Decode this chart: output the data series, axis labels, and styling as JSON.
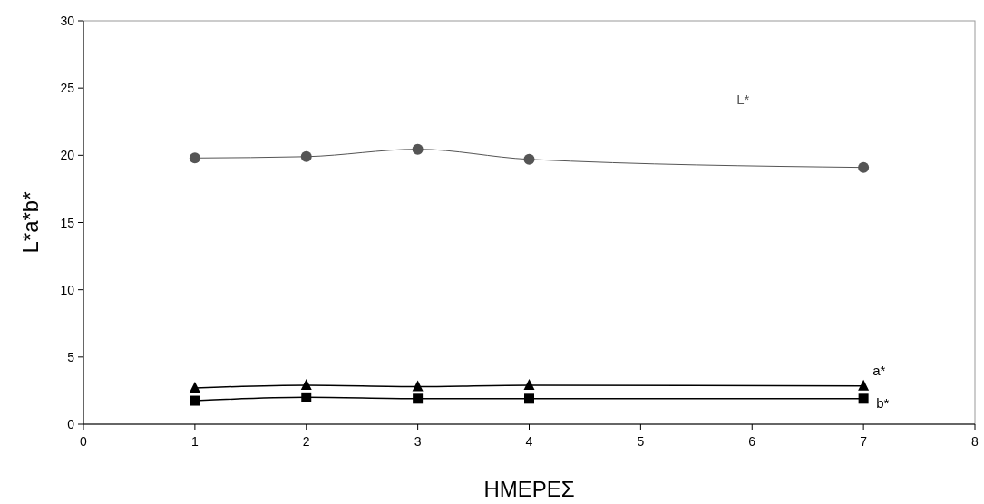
{
  "chart_data": {
    "type": "line",
    "xlabel": "ΗΜΕΡΕΣ",
    "ylabel": "L*a*b*",
    "x": [
      1,
      2,
      3,
      4,
      7
    ],
    "xlim": [
      0,
      8
    ],
    "xticks": [
      0,
      1,
      2,
      3,
      4,
      5,
      6,
      7,
      8
    ],
    "ylim": [
      0,
      30
    ],
    "yticks": [
      0,
      5,
      10,
      15,
      20,
      25,
      30
    ],
    "grid": false,
    "series": [
      {
        "name": "L*",
        "color": "#555555",
        "marker": "circle",
        "values": [
          19.8,
          19.9,
          20.45,
          19.7,
          19.1
        ]
      },
      {
        "name": "a*",
        "color": "#000000",
        "marker": "triangle",
        "values": [
          2.7,
          2.9,
          2.8,
          2.9,
          2.85
        ]
      },
      {
        "name": "b*",
        "color": "#000000",
        "marker": "square",
        "values": [
          1.75,
          2.0,
          1.9,
          1.9,
          1.9
        ]
      }
    ]
  }
}
